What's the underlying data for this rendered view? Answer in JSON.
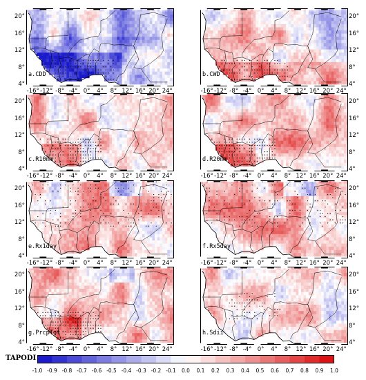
{
  "colorbar": {
    "title": "TAPODI",
    "ticks": [
      "-1.0",
      "-0.9",
      "-0.8",
      "-0.7",
      "-0.6",
      "-0.5",
      "-0.4",
      "-0.3",
      "-0.2",
      "-0.1",
      "0.0",
      "0.1",
      "0.2",
      "0.3",
      "0.4",
      "0.5",
      "0.6",
      "0.7",
      "0.8",
      "0.9",
      "1.0"
    ],
    "range": [
      -1.0,
      1.0
    ],
    "color_negative": "#1a1acc",
    "color_zero": "#ffffff",
    "color_positive": "#dd1111"
  },
  "axes": {
    "lon_ticks": [
      "-16°",
      "-12°",
      "-8°",
      "-4°",
      "0°",
      "4°",
      "8°",
      "12°",
      "16°",
      "20°",
      "24°"
    ],
    "lat_ticks": [
      "20°",
      "16°",
      "12°",
      "8°",
      "4°"
    ]
  },
  "panels": [
    {
      "label": "a.CDD",
      "bias": -0.35,
      "hatch": "coast"
    },
    {
      "label": "b.CWD",
      "bias": 0.15,
      "hatch": "coast"
    },
    {
      "label": "c.R10mm",
      "bias": 0.25,
      "hatch": "west"
    },
    {
      "label": "d.R20mm",
      "bias": 0.22,
      "hatch": "west"
    },
    {
      "label": "e.Rx1day",
      "bias": 0.2,
      "hatch": "north"
    },
    {
      "label": "f.Rx5day",
      "bias": 0.22,
      "hatch": "north"
    },
    {
      "label": "g.PrcpTot",
      "bias": 0.25,
      "hatch": "west"
    },
    {
      "label": "h.Sdii",
      "bias": 0.15,
      "hatch": "center"
    }
  ]
}
